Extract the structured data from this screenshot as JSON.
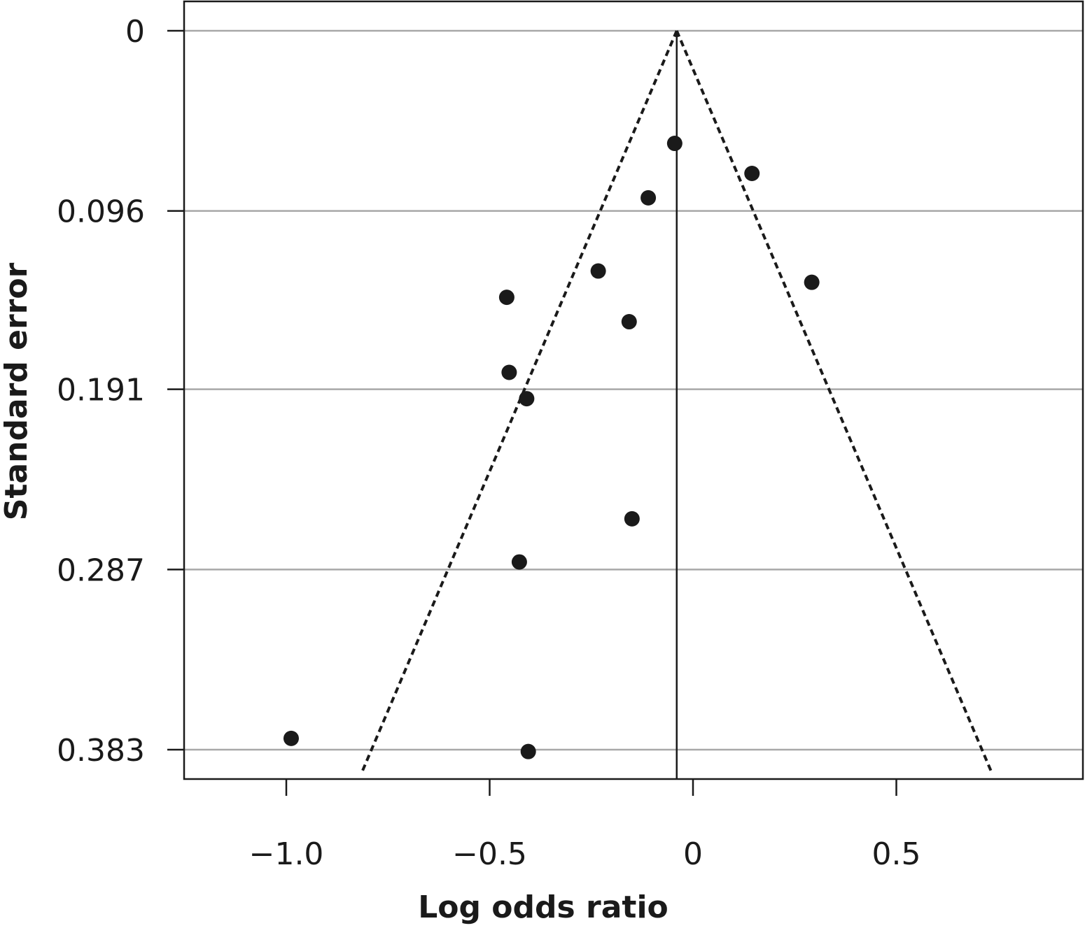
{
  "chart_data": {
    "type": "scatter",
    "title": "",
    "xlabel": "Log odds ratio",
    "ylabel": "Standard error",
    "xlim": [
      -1.25,
      0.95
    ],
    "ylim": [
      0.383,
      0
    ],
    "y_inverted": true,
    "x_ticks": [
      -1.0,
      -0.5,
      0,
      0.5
    ],
    "x_tick_labels": [
      "−1.0",
      "−0.5",
      "0",
      "0.5"
    ],
    "y_ticks": [
      0,
      0.096,
      0.191,
      0.287,
      0.383
    ],
    "y_tick_labels": [
      "0",
      "0.096",
      "0.191",
      "0.287",
      "0.383"
    ],
    "grid": "horizontal",
    "summary_estimate": -0.04,
    "funnel": {
      "apex": [
        -0.04,
        0
      ],
      "left_base": [
        -0.816,
        0.396
      ],
      "right_base": [
        0.736,
        0.396
      ]
    },
    "points": [
      {
        "x": -0.045,
        "y": 0.06
      },
      {
        "x": 0.145,
        "y": 0.076
      },
      {
        "x": -0.11,
        "y": 0.089
      },
      {
        "x": -0.233,
        "y": 0.128
      },
      {
        "x": 0.292,
        "y": 0.134
      },
      {
        "x": -0.458,
        "y": 0.142
      },
      {
        "x": -0.157,
        "y": 0.155
      },
      {
        "x": -0.452,
        "y": 0.182
      },
      {
        "x": -0.409,
        "y": 0.196
      },
      {
        "x": -0.15,
        "y": 0.26
      },
      {
        "x": -0.427,
        "y": 0.283
      },
      {
        "x": -0.988,
        "y": 0.377
      },
      {
        "x": -0.405,
        "y": 0.384
      }
    ],
    "colors": {
      "points": "#1a1a1a",
      "gridlines": "#a8a8a8",
      "frame": "#1a1a1a"
    }
  }
}
